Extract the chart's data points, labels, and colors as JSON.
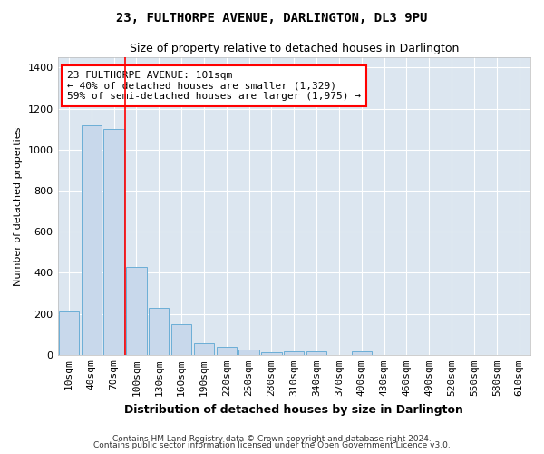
{
  "title": "23, FULTHORPE AVENUE, DARLINGTON, DL3 9PU",
  "subtitle": "Size of property relative to detached houses in Darlington",
  "xlabel": "Distribution of detached houses by size in Darlington",
  "ylabel": "Number of detached properties",
  "footer_line1": "Contains HM Land Registry data © Crown copyright and database right 2024.",
  "footer_line2": "Contains public sector information licensed under the Open Government Licence v3.0.",
  "bar_labels": [
    "10sqm",
    "40sqm",
    "70sqm",
    "100sqm",
    "130sqm",
    "160sqm",
    "190sqm",
    "220sqm",
    "250sqm",
    "280sqm",
    "310sqm",
    "340sqm",
    "370sqm",
    "400sqm",
    "430sqm",
    "460sqm",
    "490sqm",
    "520sqm",
    "550sqm",
    "580sqm",
    "610sqm"
  ],
  "bar_values": [
    210,
    1120,
    1100,
    430,
    230,
    148,
    58,
    38,
    25,
    12,
    15,
    15,
    0,
    15,
    0,
    0,
    0,
    0,
    0,
    0,
    0
  ],
  "bar_color": "#c8d8eb",
  "bar_edge_color": "#6baed6",
  "ylim": [
    0,
    1450
  ],
  "yticks": [
    0,
    200,
    400,
    600,
    800,
    1000,
    1200,
    1400
  ],
  "annotation_text": "23 FULTHORPE AVENUE: 101sqm\n← 40% of detached houses are smaller (1,329)\n59% of semi-detached houses are larger (1,975) →",
  "red_line_x": 2.5,
  "bg_color": "#ffffff",
  "plot_bg_color": "#dce6f0",
  "grid_color": "#ffffff",
  "title_fontsize": 10,
  "subtitle_fontsize": 9,
  "ylabel_fontsize": 8,
  "xlabel_fontsize": 9,
  "tick_fontsize": 8,
  "footer_fontsize": 6.5,
  "ann_fontsize": 8
}
